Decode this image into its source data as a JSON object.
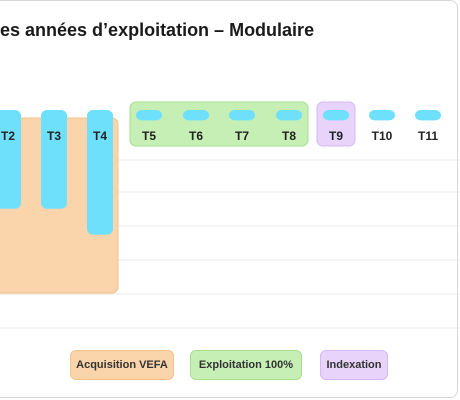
{
  "colors": {
    "bar": "#6fe0fb",
    "acquisition_fill": "#fad4ab",
    "acquisition_border": "#f5c18c",
    "exploitation_fill": "#c5efb4",
    "exploitation_border": "#a7df8f",
    "indexation_fill": "#e8d3fb",
    "indexation_border": "#d6b8f5",
    "grid": "#e9e9e9"
  },
  "chart_data": {
    "type": "bar",
    "title": "es années d’exploitation – Modulaire",
    "categories": [
      "T2",
      "T3",
      "T4",
      "T5",
      "T6",
      "T7",
      "T8",
      "T9",
      "T10",
      "T11"
    ],
    "values": [
      1.9,
      1.9,
      2.4,
      0.2,
      0.2,
      0.2,
      0.2,
      0.2,
      0.2,
      0.2
    ],
    "ylim": [
      0,
      5
    ],
    "grid": true,
    "phases": [
      {
        "label": "Acquisition VEFA",
        "categories": [
          "T2",
          "T3",
          "T4"
        ],
        "class": "acquisition"
      },
      {
        "label": "Exploitation 100%",
        "categories": [
          "T5",
          "T6",
          "T7",
          "T8"
        ],
        "class": "exploitation"
      },
      {
        "label": "Indexation",
        "categories": [
          "T9"
        ],
        "class": "indexation"
      }
    ]
  },
  "legend": {
    "acquisition": "Acquisition VEFA",
    "exploitation": "Exploitation 100%",
    "indexation": "Indexation"
  }
}
